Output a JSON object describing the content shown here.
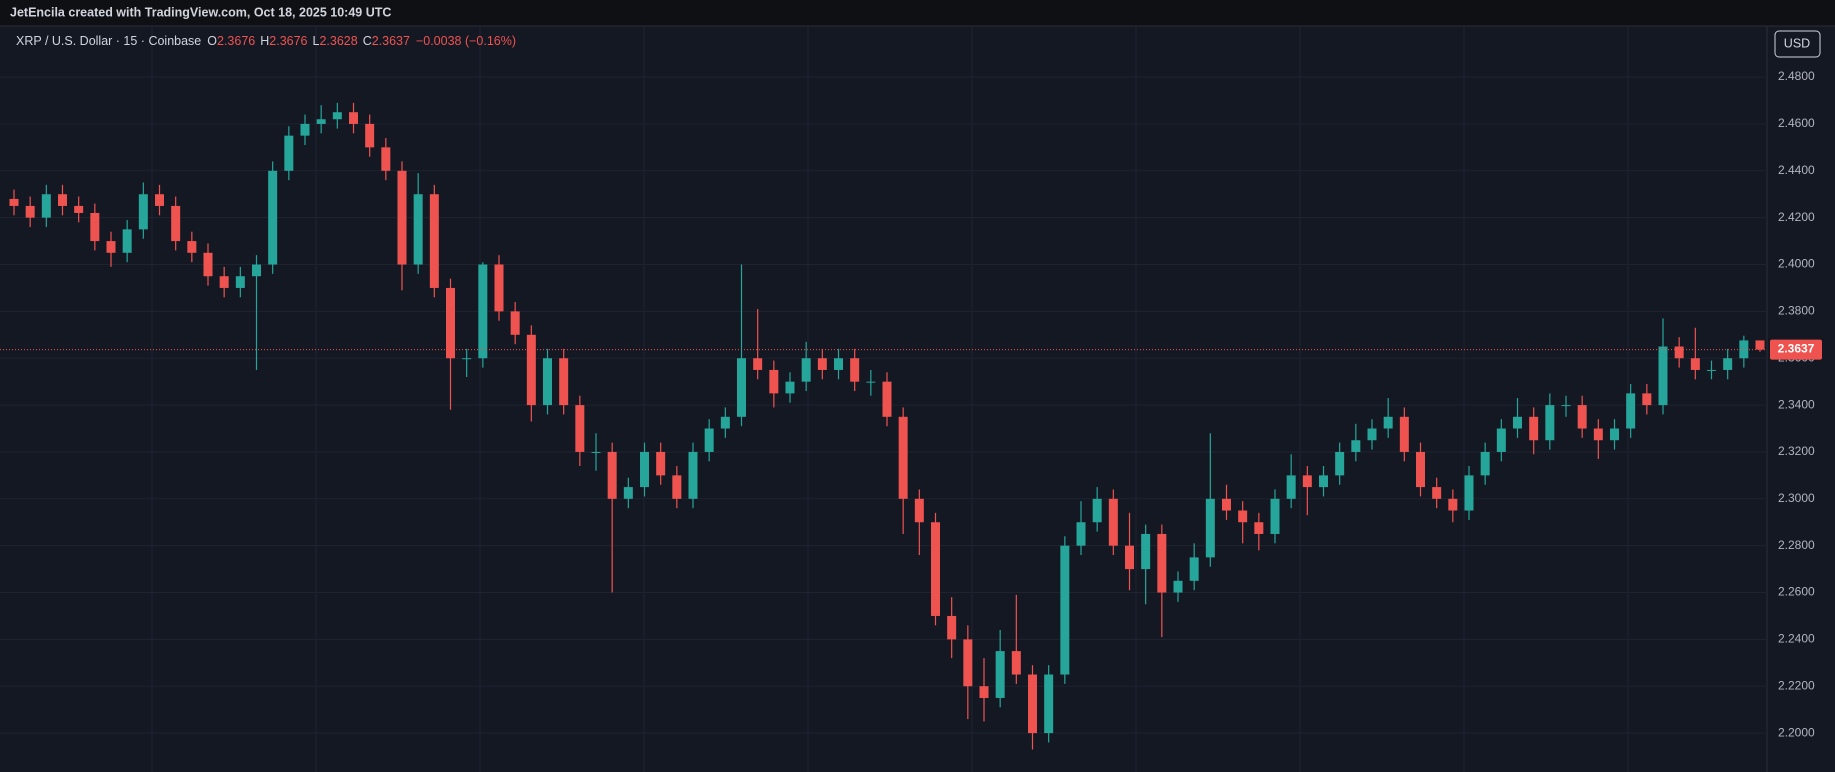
{
  "chart_data": {
    "type": "candlestick",
    "title": "JetEncila created with TradingView.com, Oct 18, 2025 10:49 UTC",
    "symbol": "XRP / U.S. Dollar · 15 · Coinbase",
    "ohlc_labels": [
      "O",
      "H",
      "L",
      "C"
    ],
    "ohlc_values": [
      2.3676,
      2.3676,
      2.3628,
      2.3637
    ],
    "change": "−0.0038 (−0.16%)",
    "currency": "USD",
    "last_price": 2.3637,
    "up_color": "#26a69a",
    "down_color": "#ef5350",
    "ylim": [
      2.1834,
      2.5018
    ],
    "yticks": [
      {
        "value": 2.2,
        "label": "2.2000"
      },
      {
        "value": 2.22,
        "label": "2.2200"
      },
      {
        "value": 2.24,
        "label": "2.2400"
      },
      {
        "value": 2.26,
        "label": "2.2600"
      },
      {
        "value": 2.28,
        "label": "2.2800"
      },
      {
        "value": 2.3,
        "label": "2.3000"
      },
      {
        "value": 2.32,
        "label": "2.3200"
      },
      {
        "value": 2.34,
        "label": "2.3400"
      },
      {
        "value": 2.36,
        "label": "2.3600"
      },
      {
        "value": 2.38,
        "label": "2.3800"
      },
      {
        "value": 2.4,
        "label": "2.4000"
      },
      {
        "value": 2.42,
        "label": "2.4200"
      },
      {
        "value": 2.44,
        "label": "2.4400"
      },
      {
        "value": 2.46,
        "label": "2.4600"
      },
      {
        "value": 2.48,
        "label": "2.4800"
      }
    ],
    "grid": true,
    "open": [
      2.428,
      2.425,
      2.42,
      2.43,
      2.425,
      2.422,
      2.41,
      2.405,
      2.415,
      2.43,
      2.425,
      2.41,
      2.405,
      2.395,
      2.39,
      2.395,
      2.4,
      2.44,
      2.455,
      2.46,
      2.462,
      2.465,
      2.46,
      2.45,
      2.44,
      2.4,
      2.43,
      2.39,
      2.36,
      2.36,
      2.4,
      2.38,
      2.37,
      2.34,
      2.36,
      2.34,
      2.32,
      2.32,
      2.3,
      2.305,
      2.32,
      2.31,
      2.3,
      2.32,
      2.33,
      2.335,
      2.36,
      2.355,
      2.345,
      2.35,
      2.36,
      2.355,
      2.36,
      2.35,
      2.35,
      2.335,
      2.3,
      2.29,
      2.25,
      2.24,
      2.22,
      2.215,
      2.235,
      2.225,
      2.2,
      2.225,
      2.28,
      2.29,
      2.3,
      2.28,
      2.27,
      2.285,
      2.26,
      2.265,
      2.275,
      2.3,
      2.295,
      2.29,
      2.285,
      2.3,
      2.31,
      2.305,
      2.31,
      2.32,
      2.325,
      2.33,
      2.335,
      2.32,
      2.305,
      2.3,
      2.295,
      2.31,
      2.32,
      2.33,
      2.335,
      2.325,
      2.34,
      2.34,
      2.33,
      2.325,
      2.33,
      2.345,
      2.34,
      2.365,
      2.36,
      2.355,
      2.355,
      2.36,
      2.3676
    ],
    "high": [
      2.432,
      2.429,
      2.434,
      2.434,
      2.429,
      2.426,
      2.414,
      2.419,
      2.435,
      2.434,
      2.429,
      2.414,
      2.409,
      2.399,
      2.399,
      2.404,
      2.444,
      2.459,
      2.464,
      2.468,
      2.469,
      2.469,
      2.464,
      2.454,
      2.444,
      2.439,
      2.434,
      2.394,
      2.364,
      2.401,
      2.404,
      2.384,
      2.374,
      2.364,
      2.364,
      2.344,
      2.328,
      2.324,
      2.309,
      2.324,
      2.324,
      2.314,
      2.324,
      2.334,
      2.339,
      2.4,
      2.381,
      2.359,
      2.354,
      2.367,
      2.364,
      2.364,
      2.364,
      2.355,
      2.354,
      2.339,
      2.304,
      2.294,
      2.258,
      2.246,
      2.232,
      2.244,
      2.259,
      2.229,
      2.229,
      2.284,
      2.299,
      2.305,
      2.304,
      2.294,
      2.289,
      2.289,
      2.269,
      2.281,
      2.328,
      2.306,
      2.299,
      2.294,
      2.304,
      2.319,
      2.314,
      2.314,
      2.324,
      2.332,
      2.334,
      2.343,
      2.339,
      2.324,
      2.309,
      2.304,
      2.314,
      2.324,
      2.334,
      2.343,
      2.339,
      2.345,
      2.344,
      2.344,
      2.334,
      2.334,
      2.349,
      2.349,
      2.377,
      2.369,
      2.373,
      2.359,
      2.364,
      2.3696,
      2.3676
    ],
    "low": [
      2.421,
      2.416,
      2.416,
      2.421,
      2.418,
      2.406,
      2.399,
      2.401,
      2.411,
      2.421,
      2.406,
      2.401,
      2.391,
      2.386,
      2.386,
      2.355,
      2.396,
      2.436,
      2.451,
      2.456,
      2.458,
      2.456,
      2.446,
      2.436,
      2.389,
      2.396,
      2.386,
      2.338,
      2.352,
      2.356,
      2.376,
      2.366,
      2.333,
      2.336,
      2.336,
      2.314,
      2.312,
      2.26,
      2.296,
      2.301,
      2.306,
      2.296,
      2.296,
      2.316,
      2.326,
      2.331,
      2.351,
      2.339,
      2.341,
      2.346,
      2.351,
      2.351,
      2.346,
      2.344,
      2.331,
      2.285,
      2.276,
      2.246,
      2.232,
      2.206,
      2.205,
      2.211,
      2.221,
      2.193,
      2.196,
      2.221,
      2.276,
      2.286,
      2.276,
      2.261,
      2.255,
      2.241,
      2.256,
      2.261,
      2.271,
      2.291,
      2.281,
      2.278,
      2.281,
      2.296,
      2.293,
      2.301,
      2.306,
      2.316,
      2.321,
      2.326,
      2.316,
      2.301,
      2.296,
      2.29,
      2.291,
      2.306,
      2.316,
      2.326,
      2.319,
      2.321,
      2.335,
      2.326,
      2.317,
      2.321,
      2.326,
      2.336,
      2.336,
      2.356,
      2.351,
      2.351,
      2.351,
      2.356,
      2.3628
    ],
    "close": [
      2.425,
      2.42,
      2.43,
      2.425,
      2.422,
      2.41,
      2.405,
      2.415,
      2.43,
      2.425,
      2.41,
      2.405,
      2.395,
      2.39,
      2.395,
      2.4,
      2.44,
      2.455,
      2.46,
      2.462,
      2.465,
      2.46,
      2.45,
      2.44,
      2.4,
      2.43,
      2.39,
      2.36,
      2.36,
      2.4,
      2.38,
      2.37,
      2.34,
      2.36,
      2.34,
      2.32,
      2.32,
      2.3,
      2.305,
      2.32,
      2.31,
      2.3,
      2.32,
      2.33,
      2.335,
      2.36,
      2.355,
      2.345,
      2.35,
      2.36,
      2.355,
      2.36,
      2.35,
      2.35,
      2.335,
      2.3,
      2.29,
      2.25,
      2.24,
      2.22,
      2.215,
      2.235,
      2.225,
      2.2,
      2.225,
      2.28,
      2.29,
      2.3,
      2.28,
      2.27,
      2.285,
      2.26,
      2.265,
      2.275,
      2.3,
      2.295,
      2.29,
      2.285,
      2.3,
      2.31,
      2.305,
      2.31,
      2.32,
      2.325,
      2.33,
      2.335,
      2.32,
      2.305,
      2.3,
      2.295,
      2.31,
      2.32,
      2.33,
      2.335,
      2.325,
      2.34,
      2.34,
      2.33,
      2.325,
      2.33,
      2.345,
      2.34,
      2.365,
      2.36,
      2.355,
      2.355,
      2.36,
      2.3676,
      2.3637
    ]
  }
}
